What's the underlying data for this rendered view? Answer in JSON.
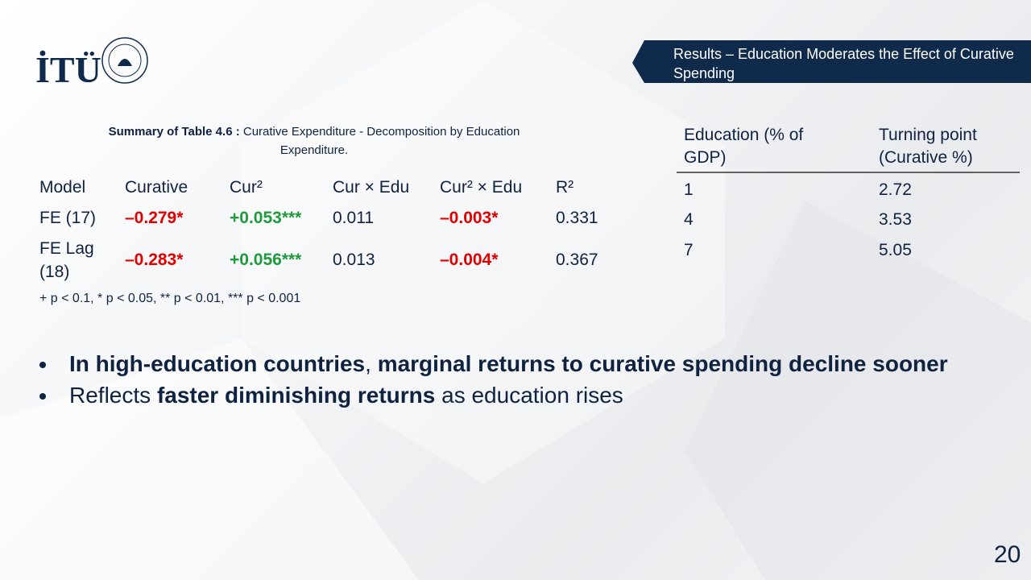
{
  "header": {
    "logo_text": "İTÜ",
    "title": "Results – Education Moderates the Effect of Curative Spending",
    "page_number": "20"
  },
  "table1": {
    "caption_bold": "Summary of Table 4.6 :",
    "caption_rest": "Curative Expenditure - Decomposition by Education Expenditure.",
    "columns": [
      "Model",
      "Curative",
      "Cur²",
      "Cur × Edu",
      "Cur² × Edu",
      "R²"
    ],
    "rows": [
      [
        "FE (17)",
        "–0.279*",
        "+0.053***",
        "0.011",
        "–0.003*",
        "0.331"
      ],
      [
        "FE Lag (18)",
        "–0.283*",
        "+0.056***",
        "0.013",
        "–0.004*",
        "0.367"
      ]
    ],
    "note": "+ p < 0.1, * p < 0.05, ** p < 0.01, *** p < 0.001"
  },
  "table2": {
    "columns": [
      "Education (% of GDP)",
      "Turning point (Curative %)"
    ],
    "rows": [
      [
        "1",
        "2.72"
      ],
      [
        "4",
        "3.53"
      ],
      [
        "7",
        "5.05"
      ]
    ]
  },
  "bullets": [
    [
      "In high-education countries",
      ", ",
      "marginal returns to curative spending decline sooner"
    ],
    [
      "Reflects ",
      "faster diminishing returns",
      " as education rises"
    ]
  ]
}
